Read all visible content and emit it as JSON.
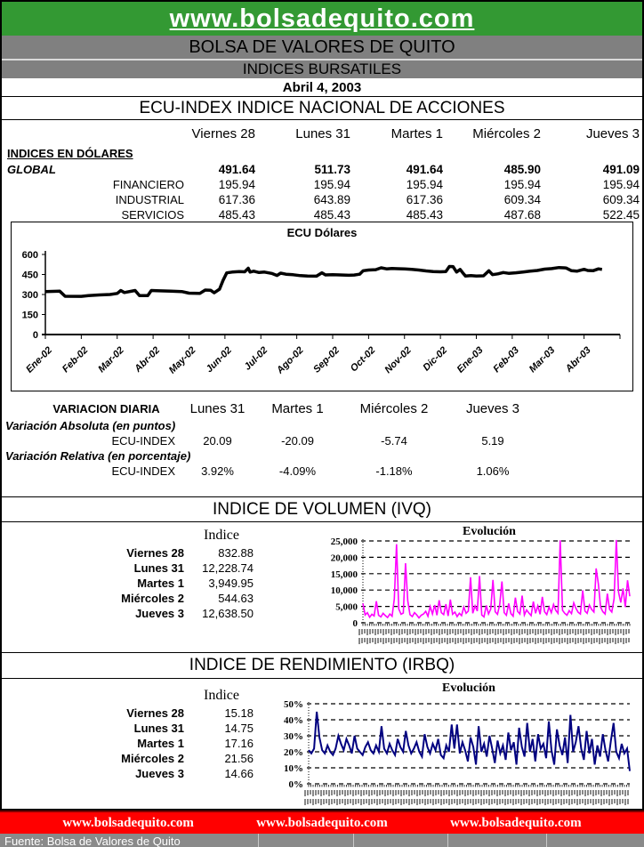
{
  "header": {
    "site": "www.bolsadequito.com",
    "exchange": "BOLSA DE VALORES DE QUITO",
    "report": "INDICES BURSATILES",
    "date": "Abril 4, 2003"
  },
  "ecu_index": {
    "title": "ECU-INDEX  INDICE NACIONAL DE ACCIONES",
    "day_headers": [
      "Viernes 28",
      "Lunes 31",
      "Martes 1",
      "Miércoles 2",
      "Jueves 3"
    ],
    "group_label": "INDICES EN DÓLARES",
    "rows": [
      {
        "label": "GLOBAL",
        "values": [
          "491.64",
          "511.73",
          "491.64",
          "485.90",
          "491.09"
        ]
      },
      {
        "label": "FINANCIERO",
        "values": [
          "195.94",
          "195.94",
          "195.94",
          "195.94",
          "195.94"
        ]
      },
      {
        "label": "INDUSTRIAL",
        "values": [
          "617.36",
          "643.89",
          "617.36",
          "609.34",
          "609.34"
        ]
      },
      {
        "label": "SERVICIOS",
        "values": [
          "485.43",
          "485.43",
          "485.43",
          "487.68",
          "522.45"
        ]
      }
    ]
  },
  "variacion": {
    "title": "VARIACION DIARIA",
    "day_headers": [
      "Lunes 31",
      "Martes 1",
      "Miércoles 2",
      "Jueves 3"
    ],
    "abs_label": "Variación Absoluta (en puntos)",
    "rel_label": "Variación Relativa (en porcentaje)",
    "row_label": "ECU-INDEX",
    "abs_values": [
      "20.09",
      "-20.09",
      "-5.74",
      "5.19"
    ],
    "rel_values": [
      "3.92%",
      "-4.09%",
      "-1.18%",
      "1.06%"
    ]
  },
  "ivq": {
    "title": "INDICE DE VOLUMEN (IVQ)",
    "col_header": "Indice",
    "rows": [
      [
        "Viernes 28",
        "832.88"
      ],
      [
        "Lunes 31",
        "12,228.74"
      ],
      [
        "Martes 1",
        "3,949.95"
      ],
      [
        "Miércoles 2",
        "544.63"
      ],
      [
        "Jueves 3",
        "12,638.50"
      ]
    ]
  },
  "irbq": {
    "title": "INDICE DE RENDIMIENTO (IRBQ)",
    "col_header": "Indice",
    "rows": [
      [
        "Viernes 28",
        "15.18"
      ],
      [
        "Lunes 31",
        "14.75"
      ],
      [
        "Martes 1",
        "17.16"
      ],
      [
        "Miércoles 2",
        "21.56"
      ],
      [
        "Jueves 3",
        "14.66"
      ]
    ]
  },
  "footer": {
    "links": [
      "www.bolsadequito.com",
      "www.bolsadequito.com",
      "www.bolsadequito.com"
    ],
    "source": "Fuente: Bolsa de Valores de Quito"
  },
  "colors": {
    "header_green": "#339933",
    "bar_gray": "#808080",
    "footer_red": "#FF0000",
    "ecu_line": "#000000",
    "volume_line": "#FF00FF",
    "yield_line": "#000080"
  },
  "chart_data": [
    {
      "type": "line",
      "title": "ECU Dólares",
      "ylim": [
        0,
        600
      ],
      "yticks": [
        0,
        150,
        300,
        450,
        600
      ],
      "x_labels": [
        "Ene-02",
        "Feb-02",
        "Mar-02",
        "Abr-02",
        "May-02",
        "Jun-02",
        "Jul-02",
        "Ago-02",
        "Sep-02",
        "Oct-02",
        "Nov-02",
        "Dic-02",
        "Ene-03",
        "Feb-03",
        "Mar-03",
        "Abr-03"
      ],
      "line_color": "#000000",
      "grid": false,
      "points": [
        [
          0,
          322
        ],
        [
          0.4,
          325
        ],
        [
          0.55,
          287
        ],
        [
          1.0,
          286
        ],
        [
          1.2,
          292
        ],
        [
          1.5,
          297
        ],
        [
          1.8,
          300
        ],
        [
          2.0,
          308
        ],
        [
          2.1,
          330
        ],
        [
          2.2,
          315
        ],
        [
          2.5,
          330
        ],
        [
          2.62,
          291
        ],
        [
          2.85,
          291
        ],
        [
          2.95,
          330
        ],
        [
          3.1,
          328
        ],
        [
          3.5,
          325
        ],
        [
          3.8,
          322
        ],
        [
          4.0,
          310
        ],
        [
          4.3,
          308
        ],
        [
          4.45,
          333
        ],
        [
          4.6,
          332
        ],
        [
          4.7,
          313
        ],
        [
          4.85,
          340
        ],
        [
          4.95,
          408
        ],
        [
          5.05,
          462
        ],
        [
          5.2,
          468
        ],
        [
          5.4,
          472
        ],
        [
          5.55,
          470
        ],
        [
          5.65,
          497
        ],
        [
          5.7,
          468
        ],
        [
          5.8,
          475
        ],
        [
          5.95,
          465
        ],
        [
          6.1,
          468
        ],
        [
          6.3,
          458
        ],
        [
          6.45,
          443
        ],
        [
          6.55,
          460
        ],
        [
          6.7,
          452
        ],
        [
          6.9,
          448
        ],
        [
          7.1,
          441
        ],
        [
          7.3,
          438
        ],
        [
          7.55,
          437
        ],
        [
          7.7,
          463
        ],
        [
          7.8,
          447
        ],
        [
          8.0,
          449
        ],
        [
          8.2,
          447
        ],
        [
          8.45,
          444
        ],
        [
          8.6,
          446
        ],
        [
          8.75,
          452
        ],
        [
          8.85,
          478
        ],
        [
          9.0,
          483
        ],
        [
          9.2,
          486
        ],
        [
          9.35,
          500
        ],
        [
          9.5,
          492
        ],
        [
          9.65,
          495
        ],
        [
          9.8,
          493
        ],
        [
          10.0,
          491
        ],
        [
          10.2,
          488
        ],
        [
          10.4,
          483
        ],
        [
          10.6,
          477
        ],
        [
          10.8,
          472
        ],
        [
          11.0,
          470
        ],
        [
          11.15,
          472
        ],
        [
          11.25,
          510
        ],
        [
          11.35,
          509
        ],
        [
          11.45,
          468
        ],
        [
          11.55,
          488
        ],
        [
          11.62,
          463
        ],
        [
          11.7,
          438
        ],
        [
          11.85,
          442
        ],
        [
          12.0,
          438
        ],
        [
          12.2,
          440
        ],
        [
          12.35,
          478
        ],
        [
          12.45,
          449
        ],
        [
          12.6,
          455
        ],
        [
          12.75,
          465
        ],
        [
          12.9,
          459
        ],
        [
          13.1,
          463
        ],
        [
          13.3,
          469
        ],
        [
          13.5,
          475
        ],
        [
          13.7,
          480
        ],
        [
          13.9,
          490
        ],
        [
          14.1,
          494
        ],
        [
          14.3,
          502
        ],
        [
          14.5,
          499
        ],
        [
          14.65,
          478
        ],
        [
          14.8,
          475
        ],
        [
          15.0,
          489
        ],
        [
          15.1,
          480
        ],
        [
          15.25,
          478
        ],
        [
          15.4,
          492
        ],
        [
          15.5,
          488
        ]
      ]
    },
    {
      "type": "line",
      "section": "IVQ",
      "title": "Evolución",
      "ylim": [
        0,
        25000
      ],
      "yticks": [
        0,
        5000,
        10000,
        15000,
        20000,
        25000
      ],
      "ytick_labels": [
        "0",
        "5,000",
        "10,000",
        "15,000",
        "20,000",
        "25,000"
      ],
      "line_color": "#FF00FF",
      "grid": "dashed",
      "x_axis_note": "dense rotated daily date labels (illegible at this size)",
      "values": [
        5900,
        2400,
        3100,
        1700,
        2600,
        2100,
        6600,
        2300,
        1800,
        2900,
        2200,
        1600,
        2700,
        2000,
        7300,
        24000,
        4200,
        2600,
        3000,
        18200,
        6800,
        2500,
        1900,
        3100,
        2400,
        1500,
        2300,
        2700,
        3500,
        2000,
        5000,
        2700,
        5400,
        2300,
        6900,
        3100,
        2500,
        5700,
        2100,
        7100,
        2600,
        3300,
        1900,
        2900,
        2200,
        4800,
        2900,
        3600,
        13900,
        2900,
        5200,
        3600,
        14300,
        2400,
        1800,
        5300,
        2700,
        4200,
        13100,
        3400,
        2600,
        5600,
        12600,
        3100,
        2300,
        5900,
        2800,
        2000,
        7700,
        3500,
        2700,
        8300,
        2400,
        3900,
        3000,
        2200,
        6500,
        2900,
        5200,
        2600,
        7900,
        3400,
        2500,
        4800,
        3100,
        5600,
        3800,
        2900,
        25200,
        3800,
        2900,
        2300,
        3700,
        2800,
        6100,
        4400,
        3200,
        2700,
        9900,
        3600,
        2900,
        5400,
        4100,
        3300,
        16600,
        11900,
        4800,
        3400,
        2700,
        8900,
        4100,
        3300,
        7400,
        25300,
        9300,
        6200,
        10500,
        4800,
        13000,
        8100
      ]
    },
    {
      "type": "line",
      "section": "IRBQ",
      "title": "Evolución",
      "ylim": [
        0,
        50
      ],
      "yticks": [
        0,
        10,
        20,
        30,
        40,
        50
      ],
      "ytick_labels": [
        "0%",
        "10%",
        "20%",
        "30%",
        "40%",
        "50%"
      ],
      "line_color": "#000080",
      "grid": "dashed",
      "x_axis_note": "dense rotated daily date labels (illegible at this size)",
      "values": [
        21,
        19,
        22,
        45,
        29,
        21,
        19,
        24,
        20,
        18,
        22,
        30,
        25,
        21,
        28,
        24,
        19,
        30,
        22,
        20,
        18,
        23,
        26,
        21,
        19,
        24,
        20,
        36,
        22,
        19,
        25,
        21,
        18,
        28,
        23,
        20,
        33,
        24,
        19,
        22,
        26,
        20,
        17,
        31,
        23,
        19,
        25,
        21,
        28,
        18,
        16,
        24,
        20,
        37,
        22,
        37,
        19,
        26,
        21,
        14,
        29,
        23,
        12,
        36,
        20,
        25,
        17,
        30,
        22,
        13,
        27,
        19,
        24,
        15,
        32,
        21,
        26,
        12,
        35,
        23,
        17,
        38,
        20,
        28,
        14,
        31,
        22,
        25,
        16,
        39,
        21,
        12,
        34,
        24,
        18,
        29,
        13,
        43,
        20,
        26,
        36,
        22,
        15,
        33,
        19,
        28,
        12,
        24,
        17,
        31,
        21,
        14,
        27,
        38,
        20,
        16,
        25,
        19,
        22,
        8
      ]
    }
  ]
}
